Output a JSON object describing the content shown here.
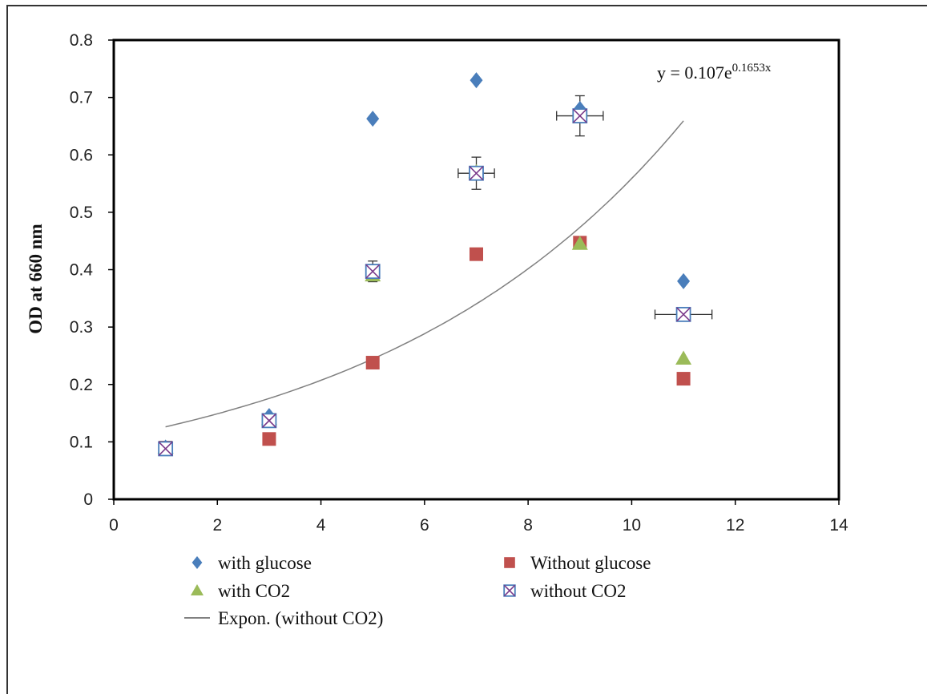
{
  "chart_data": {
    "type": "scatter",
    "title": "",
    "xlabel": "",
    "ylabel": "OD at 660 nm",
    "xlim": [
      0,
      14
    ],
    "ylim": [
      0,
      0.8
    ],
    "xticks": [
      "0",
      "2",
      "4",
      "6",
      "8",
      "10",
      "12",
      "14"
    ],
    "yticks": [
      "0",
      "0.1",
      "0.2",
      "0.3",
      "0.4",
      "0.5",
      "0.6",
      "0.7",
      "0.8"
    ],
    "grid": false,
    "legend_position": "bottom",
    "series": [
      {
        "name": "with glucose",
        "marker": "diamond",
        "color": "#4a7ebb",
        "points": [
          [
            1,
            0.09
          ],
          [
            3,
            0.145
          ],
          [
            5,
            0.663
          ],
          [
            7,
            0.73
          ],
          [
            9,
            0.68
          ],
          [
            11,
            0.38
          ]
        ]
      },
      {
        "name": "Without glucose",
        "marker": "square",
        "color": "#c0504d",
        "points": [
          [
            1,
            0.09
          ],
          [
            3,
            0.105
          ],
          [
            5,
            0.238
          ],
          [
            7,
            0.427
          ],
          [
            9,
            0.447
          ],
          [
            11,
            0.21
          ]
        ]
      },
      {
        "name": "with CO2",
        "marker": "triangle",
        "color": "#9bbb59",
        "points": [
          [
            1,
            0.09
          ],
          [
            3,
            0.14
          ],
          [
            5,
            0.39
          ],
          [
            7,
            0.57
          ],
          [
            9,
            0.445
          ],
          [
            11,
            0.245
          ]
        ]
      },
      {
        "name": "without CO2",
        "marker": "boxed-x",
        "color": "#4a7ebb",
        "points": [
          [
            1,
            0.088
          ],
          [
            3,
            0.137
          ],
          [
            5,
            0.397
          ],
          [
            7,
            0.568
          ],
          [
            9,
            0.668
          ],
          [
            11,
            0.322
          ]
        ],
        "y_error": [
          0,
          0,
          0.018,
          0.028,
          0.035,
          0
        ],
        "x_error": [
          0,
          0,
          0,
          0.35,
          0.45,
          0.55
        ]
      }
    ],
    "trendline": {
      "name": "Expon. (without CO2)",
      "type": "exponential",
      "a": 0.107,
      "b": 0.1653,
      "x_range": [
        1,
        11
      ],
      "color": "#808080",
      "equation_label": "y = 0.107e",
      "equation_exponent": "0.1653x"
    }
  }
}
